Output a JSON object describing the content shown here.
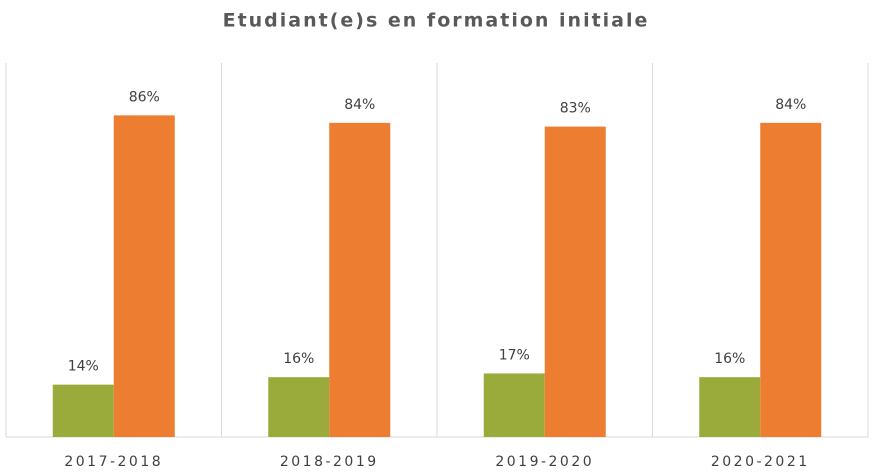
{
  "chart_data": {
    "type": "bar",
    "title": "Etudiant(e)s en formation initiale",
    "categories": [
      "2017-2018",
      "2018-2019",
      "2019-2020",
      "2020-2021"
    ],
    "series": [
      {
        "color": "#9aab3c",
        "values": [
          14,
          16,
          17,
          16
        ],
        "value_labels": [
          "14%",
          "16%",
          "17%",
          "16%"
        ]
      },
      {
        "color": "#ed7d31",
        "values": [
          86,
          84,
          83,
          84
        ],
        "value_labels": [
          "86%",
          "84%",
          "83%",
          "84%"
        ]
      }
    ],
    "ylim": [
      0,
      100
    ]
  }
}
